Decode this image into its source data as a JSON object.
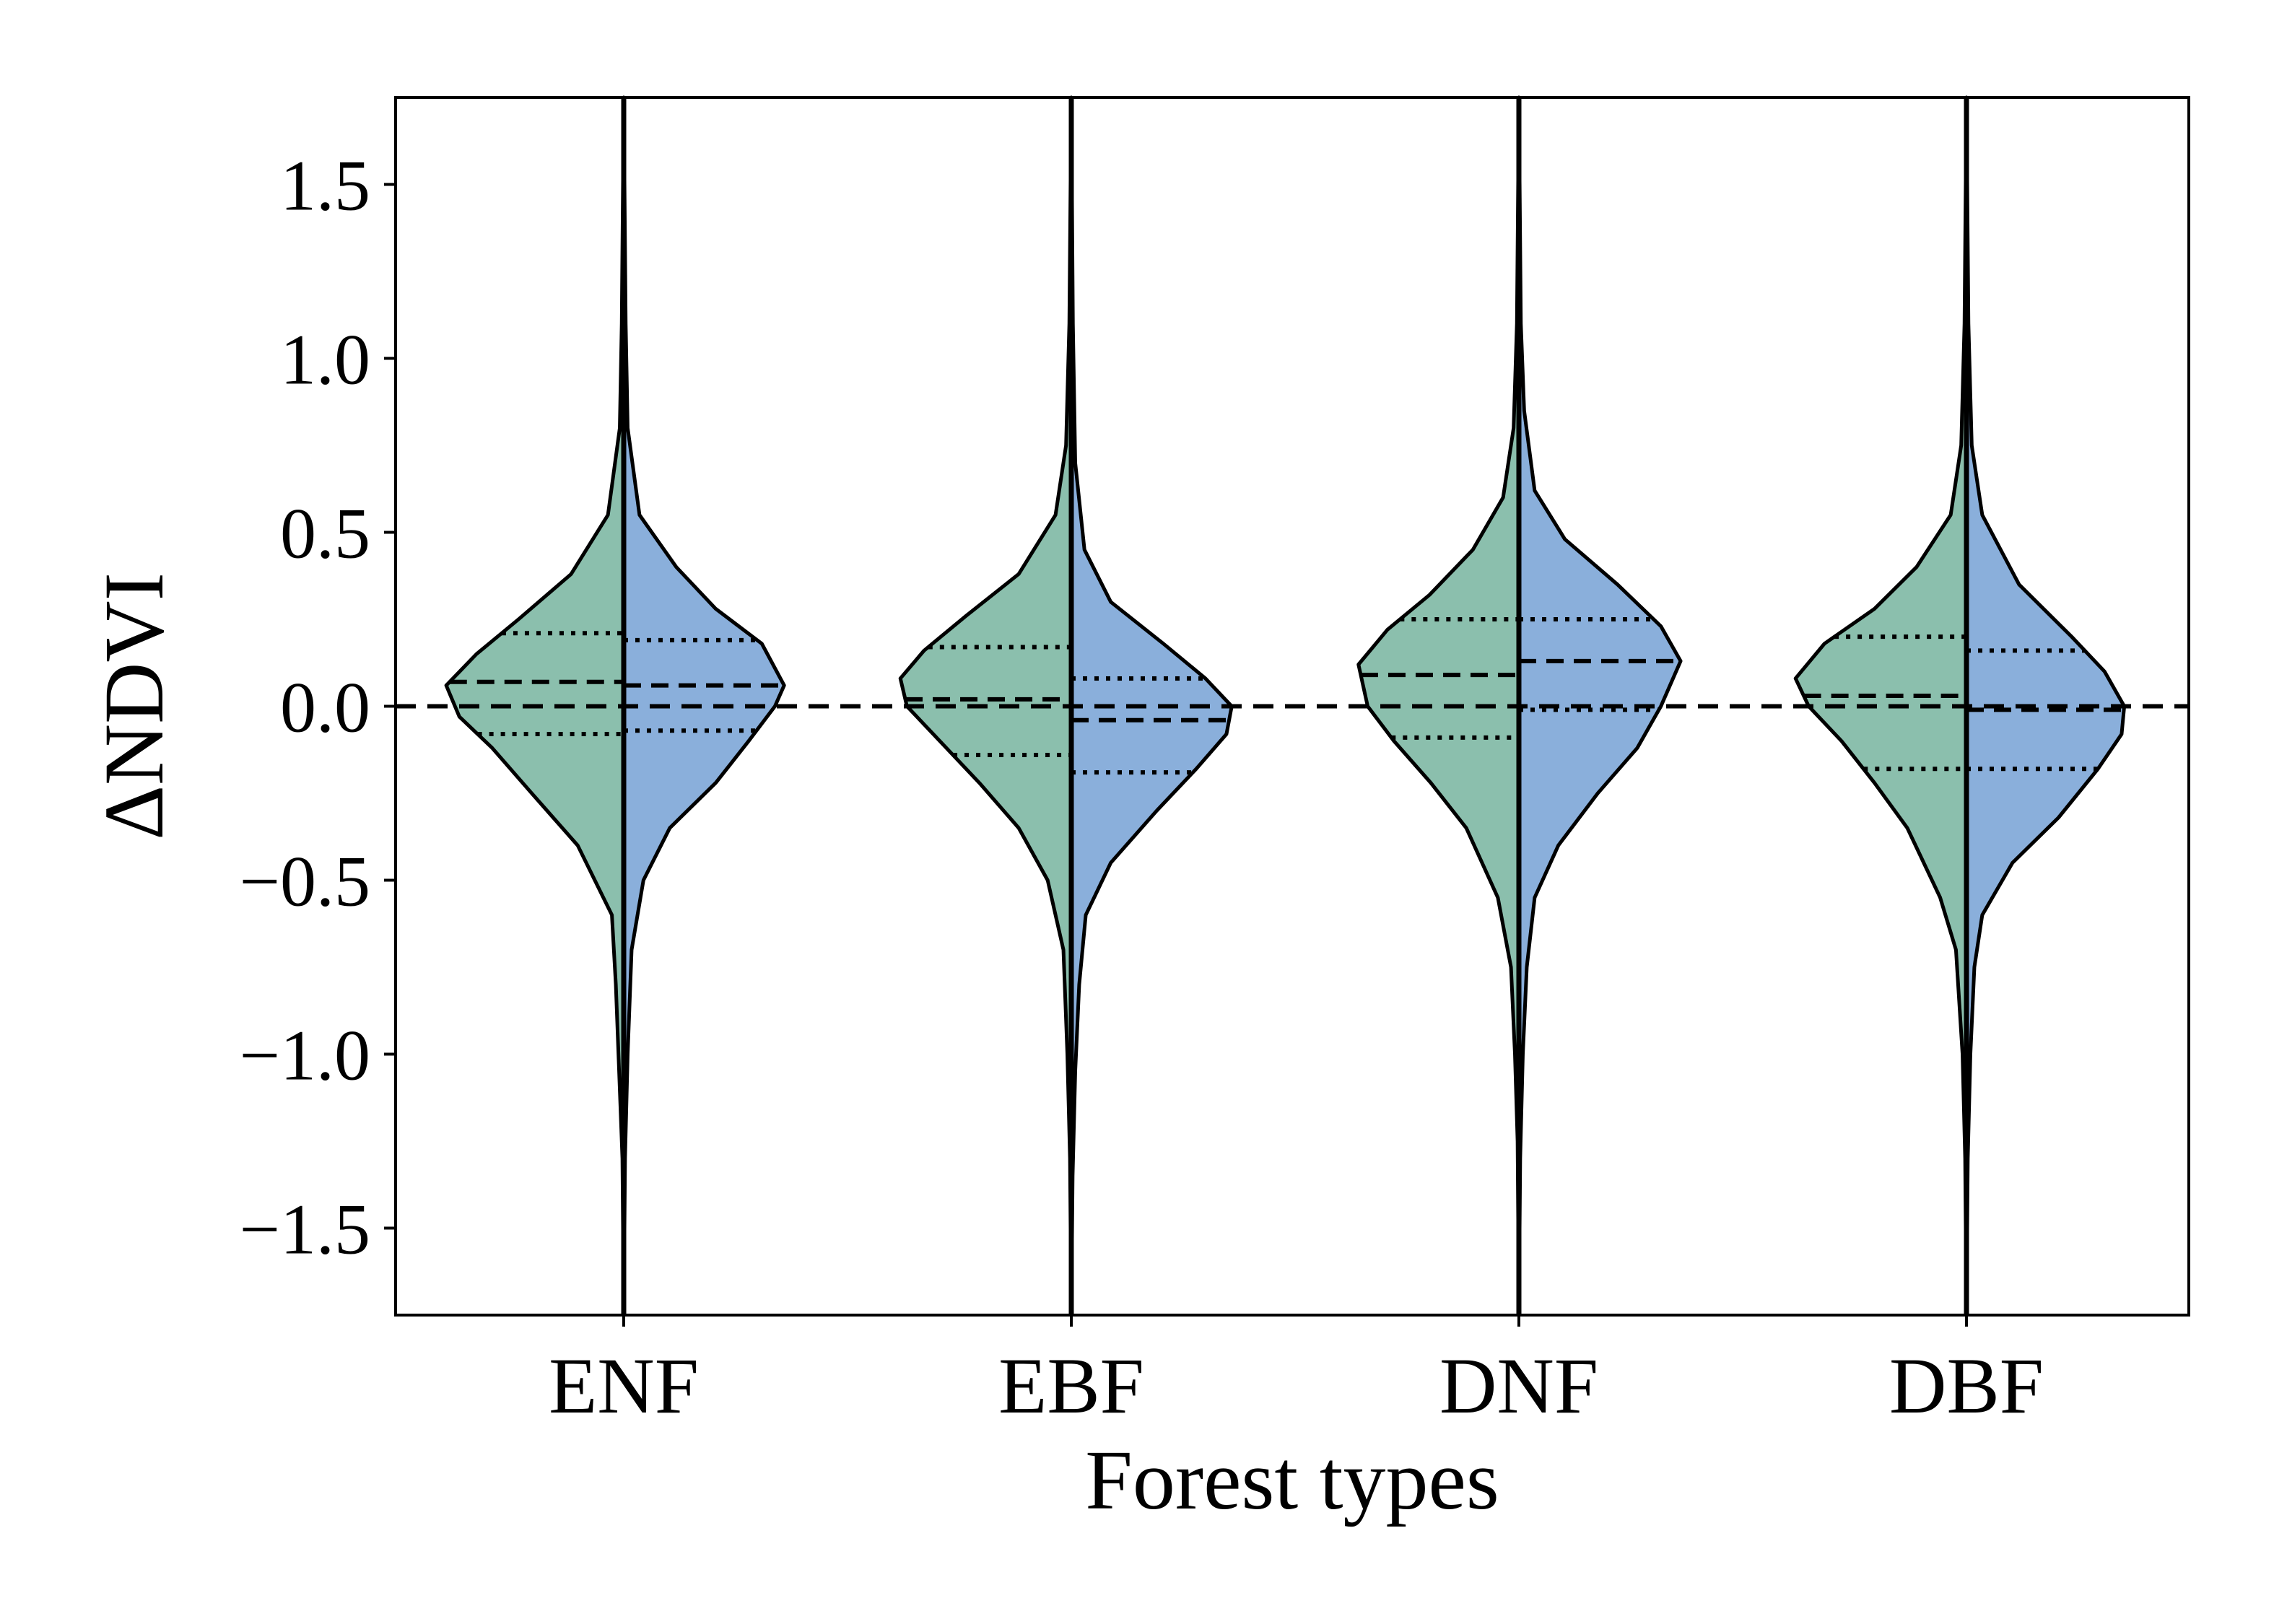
{
  "chart_data": {
    "type": "violin",
    "xlabel": "Forest types",
    "ylabel": "ΔNDVI",
    "categories": [
      "ENF",
      "EBF",
      "DNF",
      "DBF"
    ],
    "ylim": [
      -1.75,
      1.75
    ],
    "yticks": [
      -1.5,
      -1.0,
      -0.5,
      0.0,
      0.5,
      1.0,
      1.5
    ],
    "ytick_labels": [
      "−1.5",
      "−1.0",
      "−0.5",
      "0.0",
      "0.5",
      "1.0",
      "1.5"
    ],
    "reference_line": {
      "y": 0.0,
      "style": "dashed"
    },
    "colors": {
      "left_half": "#8BBFAD",
      "right_half": "#8AAFDB",
      "outline": "#000000"
    },
    "series": [
      {
        "side": "left",
        "color": "#8BBFAD",
        "stats": [
          {
            "category": "ENF",
            "min": -1.75,
            "q1": -0.08,
            "median": 0.07,
            "q3": 0.21,
            "max": 1.75
          },
          {
            "category": "EBF",
            "min": -1.75,
            "q1": -0.14,
            "median": 0.02,
            "q3": 0.17,
            "max": 1.75
          },
          {
            "category": "DNF",
            "min": -1.75,
            "q1": -0.09,
            "median": 0.09,
            "q3": 0.25,
            "max": 1.75
          },
          {
            "category": "DBF",
            "min": -1.75,
            "q1": -0.18,
            "median": 0.03,
            "q3": 0.2,
            "max": 1.75
          }
        ]
      },
      {
        "side": "right",
        "color": "#8AAFDB",
        "stats": [
          {
            "category": "ENF",
            "min": -1.75,
            "q1": -0.07,
            "median": 0.06,
            "q3": 0.19,
            "max": 1.75
          },
          {
            "category": "EBF",
            "min": -1.75,
            "q1": -0.19,
            "median": -0.04,
            "q3": 0.08,
            "max": 1.75
          },
          {
            "category": "DNF",
            "min": -1.75,
            "q1": -0.01,
            "median": 0.13,
            "q3": 0.25,
            "max": 1.75
          },
          {
            "category": "DBF",
            "min": -1.75,
            "q1": -0.18,
            "median": -0.01,
            "q3": 0.16,
            "max": 1.75
          }
        ]
      }
    ]
  }
}
